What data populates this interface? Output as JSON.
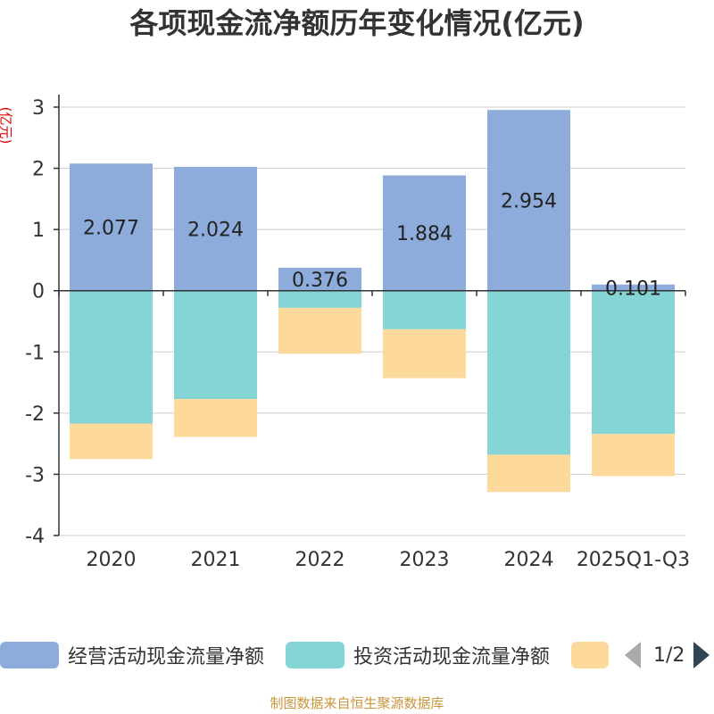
{
  "chart_data": {
    "type": "bar",
    "title": "各项现金流净额历年变化情况(亿元)",
    "ylabel": "(亿元)",
    "categories": [
      "2020",
      "2021",
      "2022",
      "2023",
      "2024",
      "2025Q1-Q3"
    ],
    "ylim": [
      -4,
      3
    ],
    "yticks": [
      3,
      2,
      1,
      0,
      -1,
      -2,
      -3,
      -4
    ],
    "stacked": true,
    "series": [
      {
        "name": "经营活动现金流量净额",
        "color": "#8eacdb",
        "values": [
          2.077,
          2.024,
          0.376,
          1.884,
          2.954,
          0.101
        ],
        "labels": [
          "2.077",
          "2.024",
          "0.376",
          "1.884",
          "2.954",
          "0.101"
        ]
      },
      {
        "name": "投资活动现金流量净额",
        "color": "#85d4d6",
        "values": [
          -2.17,
          -1.77,
          -0.28,
          -0.63,
          -2.68,
          -2.34
        ]
      },
      {
        "name": "",
        "color": "#fdd99b",
        "values": [
          -0.58,
          -0.62,
          -0.75,
          -0.8,
          -0.61,
          -0.69
        ]
      }
    ]
  },
  "legend": {
    "items": [
      "经营活动现金流量净额",
      "投资活动现金流量净额",
      ""
    ],
    "pager": "1/2"
  },
  "source": "制图数据来自恒生聚源数据库"
}
